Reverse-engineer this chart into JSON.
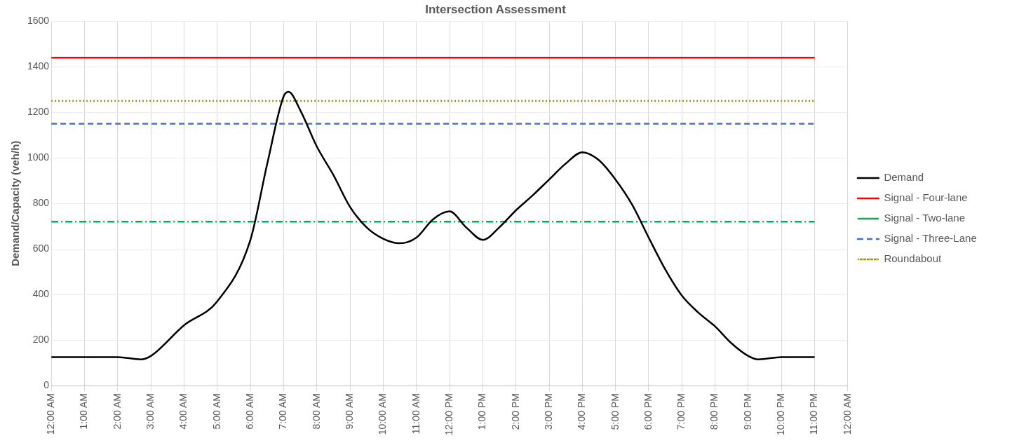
{
  "chart_data": {
    "type": "line",
    "title": "Intersection Assessment",
    "ylabel": "Demand/Capacity (veh/h)",
    "xlim": [
      0,
      24
    ],
    "xticks": [
      {
        "value": 0,
        "label": "12:00 AM"
      },
      {
        "value": 1,
        "label": "1:00 AM"
      },
      {
        "value": 2,
        "label": "2:00 AM"
      },
      {
        "value": 3,
        "label": "3:00 AM"
      },
      {
        "value": 4,
        "label": "4:00 AM"
      },
      {
        "value": 5,
        "label": "5:00 AM"
      },
      {
        "value": 6,
        "label": "6:00 AM"
      },
      {
        "value": 7,
        "label": "7:00 AM"
      },
      {
        "value": 8,
        "label": "8:00 AM"
      },
      {
        "value": 9,
        "label": "9:00 AM"
      },
      {
        "value": 10,
        "label": "10:00 AM"
      },
      {
        "value": 11,
        "label": "11:00 AM"
      },
      {
        "value": 12,
        "label": "12:00 PM"
      },
      {
        "value": 13,
        "label": "1:00 PM"
      },
      {
        "value": 14,
        "label": "2:00 PM"
      },
      {
        "value": 15,
        "label": "3:00 PM"
      },
      {
        "value": 16,
        "label": "4:00 PM"
      },
      {
        "value": 17,
        "label": "5:00 PM"
      },
      {
        "value": 18,
        "label": "6:00 PM"
      },
      {
        "value": 19,
        "label": "7:00 PM"
      },
      {
        "value": 20,
        "label": "8:00 PM"
      },
      {
        "value": 21,
        "label": "9:00 PM"
      },
      {
        "value": 22,
        "label": "10:00 PM"
      },
      {
        "value": 23,
        "label": "11:00 PM"
      },
      {
        "value": 24,
        "label": "12:00 AM"
      }
    ],
    "ylim": [
      0,
      1600
    ],
    "yticks": [
      0,
      200,
      400,
      600,
      800,
      1000,
      1200,
      1400,
      1600
    ],
    "grid": true,
    "legend": "right",
    "marker": "none",
    "series": [
      {
        "name": "Demand",
        "color": "#000000",
        "line_style": "solid",
        "x": [
          0,
          1,
          2,
          2.7,
          3,
          4,
          5,
          6,
          6.5,
          7,
          7.15,
          7.5,
          8,
          8.5,
          9,
          9.5,
          10,
          10.5,
          11,
          11.5,
          12,
          12.5,
          13,
          13.5,
          14,
          14.5,
          15,
          15.5,
          16,
          16.5,
          17,
          17.5,
          18,
          18.5,
          19,
          19.5,
          20,
          20.5,
          21,
          21.3,
          22,
          23
        ],
        "values": [
          125,
          125,
          125,
          115,
          130,
          265,
          370,
          640,
          970,
          1270,
          1290,
          1210,
          1050,
          925,
          785,
          695,
          645,
          625,
          650,
          730,
          765,
          695,
          640,
          695,
          770,
          835,
          905,
          975,
          1025,
          990,
          905,
          795,
          650,
          510,
          395,
          320,
          260,
          185,
          130,
          115,
          125,
          125
        ]
      },
      {
        "name": "Signal - Four-lane",
        "color": "#ff0000",
        "line_style": "solid",
        "x": [
          0,
          23
        ],
        "values": [
          1440,
          1440
        ]
      },
      {
        "name": "Signal - Two-lane",
        "color": "#00b050",
        "line_style": "dashdot",
        "x": [
          0,
          23
        ],
        "values": [
          720,
          720
        ]
      },
      {
        "name": "Signal - Three-Lane",
        "color": "#4472c4",
        "line_style": "dashed",
        "x": [
          0,
          23
        ],
        "values": [
          1150,
          1150
        ]
      },
      {
        "name": "Roundabout",
        "color": "#9c8f00",
        "line_style": "dotted",
        "x": [
          0,
          23
        ],
        "values": [
          1250,
          1250
        ]
      }
    ]
  }
}
